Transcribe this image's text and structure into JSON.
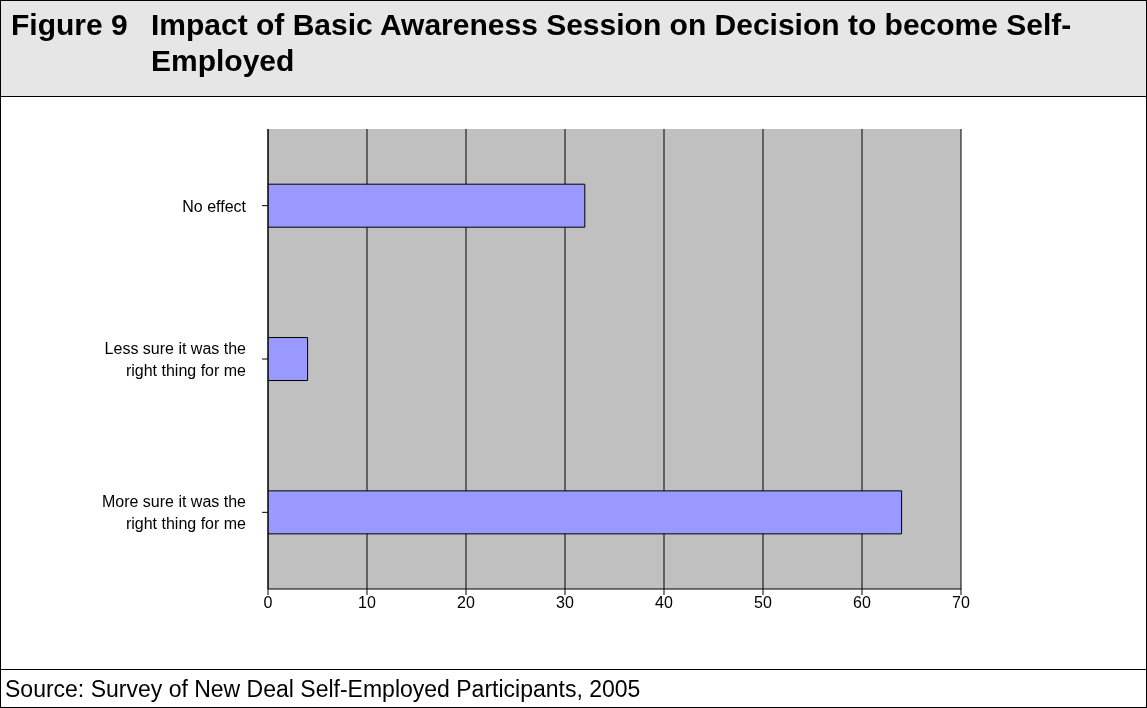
{
  "chart_data": {
    "type": "bar",
    "orientation": "horizontal",
    "title": "Figure 9",
    "subtitle": "Impact of Basic Awareness Session on Decision to become Self-Employed",
    "categories": [
      "No effect",
      "Less sure it was the right thing for me",
      "More sure it was the right thing for me"
    ],
    "values": [
      32,
      4,
      64
    ],
    "color": "#9999ff",
    "xlim": [
      0,
      70
    ],
    "xticks": [
      0,
      10,
      20,
      30,
      40,
      50,
      60,
      70
    ],
    "grid": "x",
    "annotations": [
      "Source: Survey of New Deal Self-Employed Participants, 2005"
    ]
  }
}
